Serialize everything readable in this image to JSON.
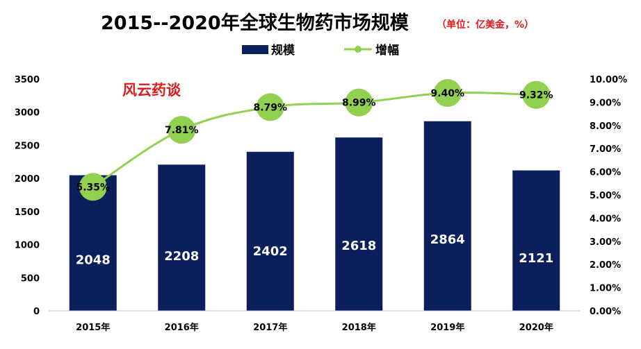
{
  "chart_data": {
    "type": "bar",
    "title": "2015--2020年全球生物药市场规模",
    "subtitle": "（单位：亿美金，%）",
    "watermark": "风云药谈",
    "categories": [
      "2015年",
      "2016年",
      "2017年",
      "2018年",
      "2019年",
      "2020年"
    ],
    "series": [
      {
        "name": "规模",
        "type": "bar",
        "axis": "left",
        "color": "#0b1f5c",
        "values": [
          2048,
          2208,
          2402,
          2618,
          2864,
          2121
        ],
        "labels": [
          "2048",
          "2208",
          "2402",
          "2618",
          "2864",
          "2121"
        ]
      },
      {
        "name": "增幅",
        "type": "line",
        "axis": "right",
        "color": "#92d050",
        "values": [
          5.35,
          7.81,
          8.79,
          8.99,
          9.4,
          9.32
        ],
        "labels": [
          "5.35%",
          "7.81%",
          "8.79%",
          "8.99%",
          "9.40%",
          "9.32%"
        ]
      }
    ],
    "y_left": {
      "min": 0,
      "max": 3500,
      "ticks": [
        "0",
        "500",
        "1000",
        "1500",
        "2000",
        "2500",
        "3000",
        "3500"
      ]
    },
    "y_right": {
      "min": 0,
      "max": 10,
      "ticks": [
        "0.00%",
        "1.00%",
        "2.00%",
        "3.00%",
        "4.00%",
        "5.00%",
        "6.00%",
        "7.00%",
        "8.00%",
        "9.00%",
        "10.00%"
      ]
    },
    "legend_position": "top-center",
    "grid": false
  }
}
